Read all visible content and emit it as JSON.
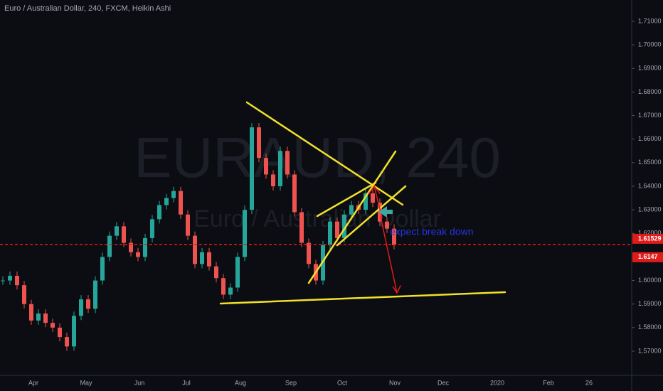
{
  "chart_data": {
    "type": "candlestick",
    "title": "Euro / Australian Dollar, 240, FXCM, Heikin Ashi",
    "watermark": "EURAUD, 240",
    "watermark_subtitle": "Euro / Australian Dollar",
    "annotation": "expect break down",
    "up_color": "#26a69a",
    "down_color": "#ef5350",
    "values": [
      1.6,
      1.602,
      1.598,
      1.59,
      1.583,
      1.586,
      1.582,
      1.58,
      1.576,
      1.572,
      1.585,
      1.592,
      1.588,
      1.6,
      1.61,
      1.619,
      1.623,
      1.616,
      1.612,
      1.61,
      1.618,
      1.626,
      1.632,
      1.635,
      1.638,
      1.628,
      1.619,
      1.607,
      1.612,
      1.606,
      1.601,
      1.594,
      1.597,
      1.61,
      1.63,
      1.665,
      1.652,
      1.645,
      1.64,
      1.655,
      1.645,
      1.629,
      1.616,
      1.607,
      1.6,
      1.615,
      1.625,
      1.618,
      1.628,
      1.632,
      1.63,
      1.637,
      1.633,
      1.625,
      1.622,
      1.615
    ],
    "ylim": [
      1.56155,
      1.71905
    ],
    "yticks": [
      {
        "value": 1.57,
        "label": "1.57000"
      },
      {
        "value": 1.58,
        "label": "1.58000"
      },
      {
        "value": 1.59,
        "label": "1.59000"
      },
      {
        "value": 1.6,
        "label": "1.60000"
      },
      {
        "value": 1.61,
        "label": "1.61000"
      },
      {
        "value": 1.62,
        "label": "1.62000"
      },
      {
        "value": 1.63,
        "label": "1.63000"
      },
      {
        "value": 1.64,
        "label": "1.64000"
      },
      {
        "value": 1.65,
        "label": "1.65000"
      },
      {
        "value": 1.66,
        "label": "1.66000"
      },
      {
        "value": 1.67,
        "label": "1.67000"
      },
      {
        "value": 1.68,
        "label": "1.68000"
      },
      {
        "value": 1.69,
        "label": "1.69000"
      },
      {
        "value": 1.7,
        "label": "1.70000"
      },
      {
        "value": 1.71,
        "label": "1.71000"
      }
    ],
    "x_labels": [
      "Apr",
      "May",
      "Jun",
      "Jul",
      "Aug",
      "Sep",
      "Oct",
      "Nov",
      "Dec",
      "2020",
      "Feb",
      "26"
    ],
    "price_lines": [
      {
        "value": 1.61529,
        "color": "#e01b1b",
        "dashed": true
      },
      {
        "value": 1.6147,
        "color": "#e01b1b",
        "dashed": false
      }
    ]
  }
}
